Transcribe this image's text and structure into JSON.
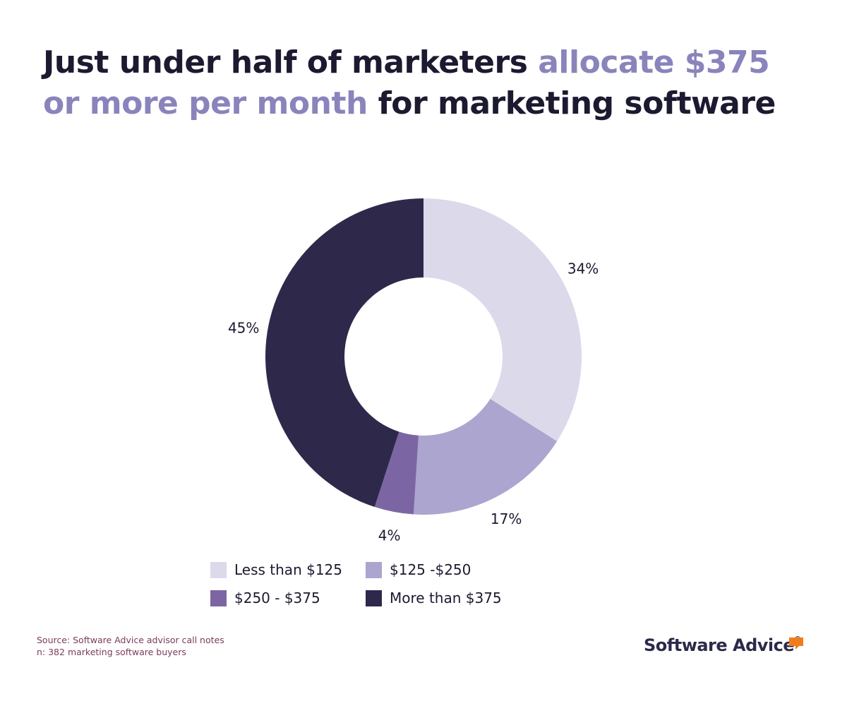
{
  "title": {
    "part1": "Just under half of marketers ",
    "highlight": "allocate $375 or more per month",
    "part2": " for marketing software"
  },
  "chart_data": {
    "type": "pie",
    "style": "donut",
    "categories": [
      "Less than $125",
      "$125 -$250",
      "$250 - $375",
      "More than $375"
    ],
    "values": [
      34,
      17,
      4,
      45
    ],
    "labels": [
      "34%",
      "17%",
      "4%",
      "45%"
    ],
    "colors": [
      "#dcd9eb",
      "#aba5cf",
      "#7b66a3",
      "#2e294b"
    ],
    "legend_position": "bottom"
  },
  "source": {
    "line1": "Source: Software Advice advisor call notes",
    "line2": "n: 382 marketing software buyers"
  },
  "logo": {
    "text": "Software Advice",
    "mark": "®",
    "accent": "#f07c1b"
  }
}
